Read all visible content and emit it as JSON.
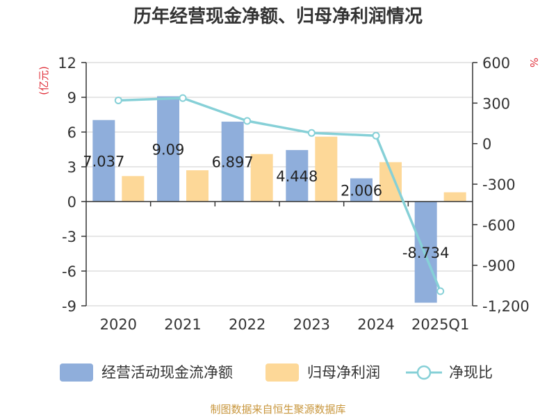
{
  "title": "历年经营现金净额、归母净利润情况",
  "source": "制图数据来自恒生聚源数据库",
  "colors": {
    "bar_cash": "#8faedb",
    "bar_profit": "#fdd898",
    "line": "#86d0d7",
    "grid": "#cccccc",
    "axis": "#333333",
    "unit": "#e0303a",
    "source": "#c8963c"
  },
  "chart_data": {
    "type": "bar",
    "categories": [
      "2020",
      "2021",
      "2022",
      "2023",
      "2024",
      "2025Q1"
    ],
    "series": [
      {
        "name": "经营活动现金流净额",
        "type": "bar",
        "axis": "left",
        "values": [
          7.037,
          9.09,
          6.897,
          4.448,
          2.006,
          -8.734
        ],
        "labels": [
          "7.037",
          "9.09",
          "6.897",
          "4.448",
          "2.006",
          "-8.734"
        ]
      },
      {
        "name": "归母净利润",
        "type": "bar",
        "axis": "left",
        "values": [
          2.2,
          2.7,
          4.1,
          5.6,
          3.4,
          0.8
        ]
      },
      {
        "name": "净现比",
        "type": "line",
        "axis": "right",
        "values": [
          320,
          337,
          168,
          79,
          59,
          -1092
        ]
      }
    ],
    "y_left": {
      "label": "(亿元)",
      "min": -9,
      "max": 12,
      "ticks": [
        12,
        9,
        6,
        3,
        0,
        -3,
        -6,
        -9
      ],
      "tick_labels": [
        "12",
        "9",
        "6",
        "3",
        "0",
        "-3",
        "-6",
        "-9"
      ]
    },
    "y_right": {
      "label": "%",
      "min": -1200,
      "max": 600,
      "ticks": [
        600,
        300,
        0,
        -300,
        -600,
        -900,
        -1200
      ],
      "tick_labels": [
        "600",
        "300",
        "0",
        "-300",
        "-600",
        "-900",
        "-1,200"
      ]
    },
    "grid": true,
    "legend_position": "bottom"
  }
}
